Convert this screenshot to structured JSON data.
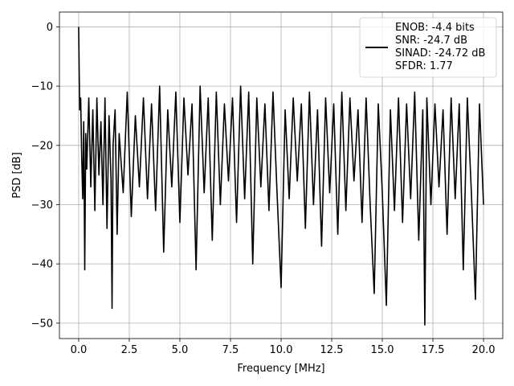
{
  "chart_data": {
    "type": "line",
    "xlabel": "Frequency [MHz]",
    "ylabel": "PSD [dB]",
    "xlim": [
      -0.95,
      20.95
    ],
    "ylim": [
      -52.6,
      2.5
    ],
    "x_ticks": [
      0.0,
      2.5,
      5.0,
      7.5,
      10.0,
      12.5,
      15.0,
      17.5,
      20.0
    ],
    "x_tick_labels": [
      "0.0",
      "2.5",
      "5.0",
      "7.5",
      "10.0",
      "12.5",
      "15.0",
      "17.5",
      "20.0"
    ],
    "y_ticks": [
      0,
      -10,
      -20,
      -30,
      -40,
      -50
    ],
    "y_tick_labels": [
      "0",
      "−10",
      "−20",
      "−30",
      "−40",
      "−50"
    ],
    "grid": true,
    "legend_position": "top-right",
    "series": [
      {
        "name": "ENOB: -4.4 bits\nSNR: -24.7 dB\nSINAD: -24.72 dB\nSFDR: 1.77",
        "legend_lines": [
          "ENOB: -4.4 bits",
          "SNR: -24.7 dB",
          "SINAD: -24.72 dB",
          "SFDR: 1.77"
        ],
        "color": "#000000",
        "x": [
          0.0,
          0.02,
          0.05,
          0.1,
          0.15,
          0.2,
          0.25,
          0.3,
          0.35,
          0.4,
          0.5,
          0.6,
          0.7,
          0.8,
          0.9,
          1.0,
          1.1,
          1.2,
          1.3,
          1.4,
          1.5,
          1.6,
          1.65,
          1.7,
          1.8,
          1.9,
          2.0,
          2.2,
          2.4,
          2.6,
          2.8,
          3.0,
          3.2,
          3.4,
          3.6,
          3.8,
          4.0,
          4.2,
          4.4,
          4.6,
          4.8,
          5.0,
          5.2,
          5.4,
          5.6,
          5.8,
          6.0,
          6.2,
          6.4,
          6.6,
          6.8,
          7.0,
          7.2,
          7.4,
          7.6,
          7.8,
          8.0,
          8.2,
          8.4,
          8.6,
          8.8,
          9.0,
          9.2,
          9.4,
          9.6,
          9.8,
          10.0,
          10.2,
          10.4,
          10.6,
          10.8,
          11.0,
          11.2,
          11.4,
          11.6,
          11.8,
          12.0,
          12.2,
          12.4,
          12.6,
          12.8,
          13.0,
          13.2,
          13.4,
          13.6,
          13.8,
          14.0,
          14.2,
          14.4,
          14.6,
          14.8,
          15.0,
          15.2,
          15.4,
          15.6,
          15.8,
          16.0,
          16.2,
          16.4,
          16.6,
          16.8,
          17.0,
          17.1,
          17.2,
          17.4,
          17.6,
          17.8,
          18.0,
          18.2,
          18.4,
          18.6,
          18.8,
          19.0,
          19.2,
          19.4,
          19.6,
          19.8,
          20.0
        ],
        "values": [
          0.0,
          -6,
          -14,
          -12,
          -22,
          -29,
          -16,
          -41,
          -18,
          -24,
          -12,
          -27,
          -14,
          -31,
          -12,
          -25,
          -16,
          -30,
          -12,
          -34,
          -15,
          -26,
          -47.5,
          -20,
          -14,
          -35,
          -18,
          -28,
          -11,
          -32,
          -15,
          -27,
          -12,
          -29,
          -13,
          -31,
          -10,
          -38,
          -14,
          -27,
          -11,
          -33,
          -12,
          -25,
          -13,
          -41,
          -10,
          -28,
          -12,
          -36,
          -11,
          -30,
          -13,
          -26,
          -12,
          -33,
          -10,
          -29,
          -11,
          -40,
          -12,
          -27,
          -13,
          -31,
          -11,
          -28,
          -44,
          -14,
          -29,
          -12,
          -26,
          -13,
          -34,
          -11,
          -30,
          -14,
          -37,
          -12,
          -28,
          -13,
          -35,
          -11,
          -31,
          -12,
          -26,
          -14,
          -33,
          -12,
          -30,
          -45,
          -13,
          -28,
          -47,
          -14,
          -31,
          -12,
          -33,
          -13,
          -29,
          -11,
          -36,
          -14,
          -50.3,
          -12,
          -30,
          -13,
          -27,
          -14,
          -35,
          -12,
          -29,
          -13,
          -41,
          -12,
          -28,
          -46,
          -13,
          -30
        ]
      }
    ]
  }
}
